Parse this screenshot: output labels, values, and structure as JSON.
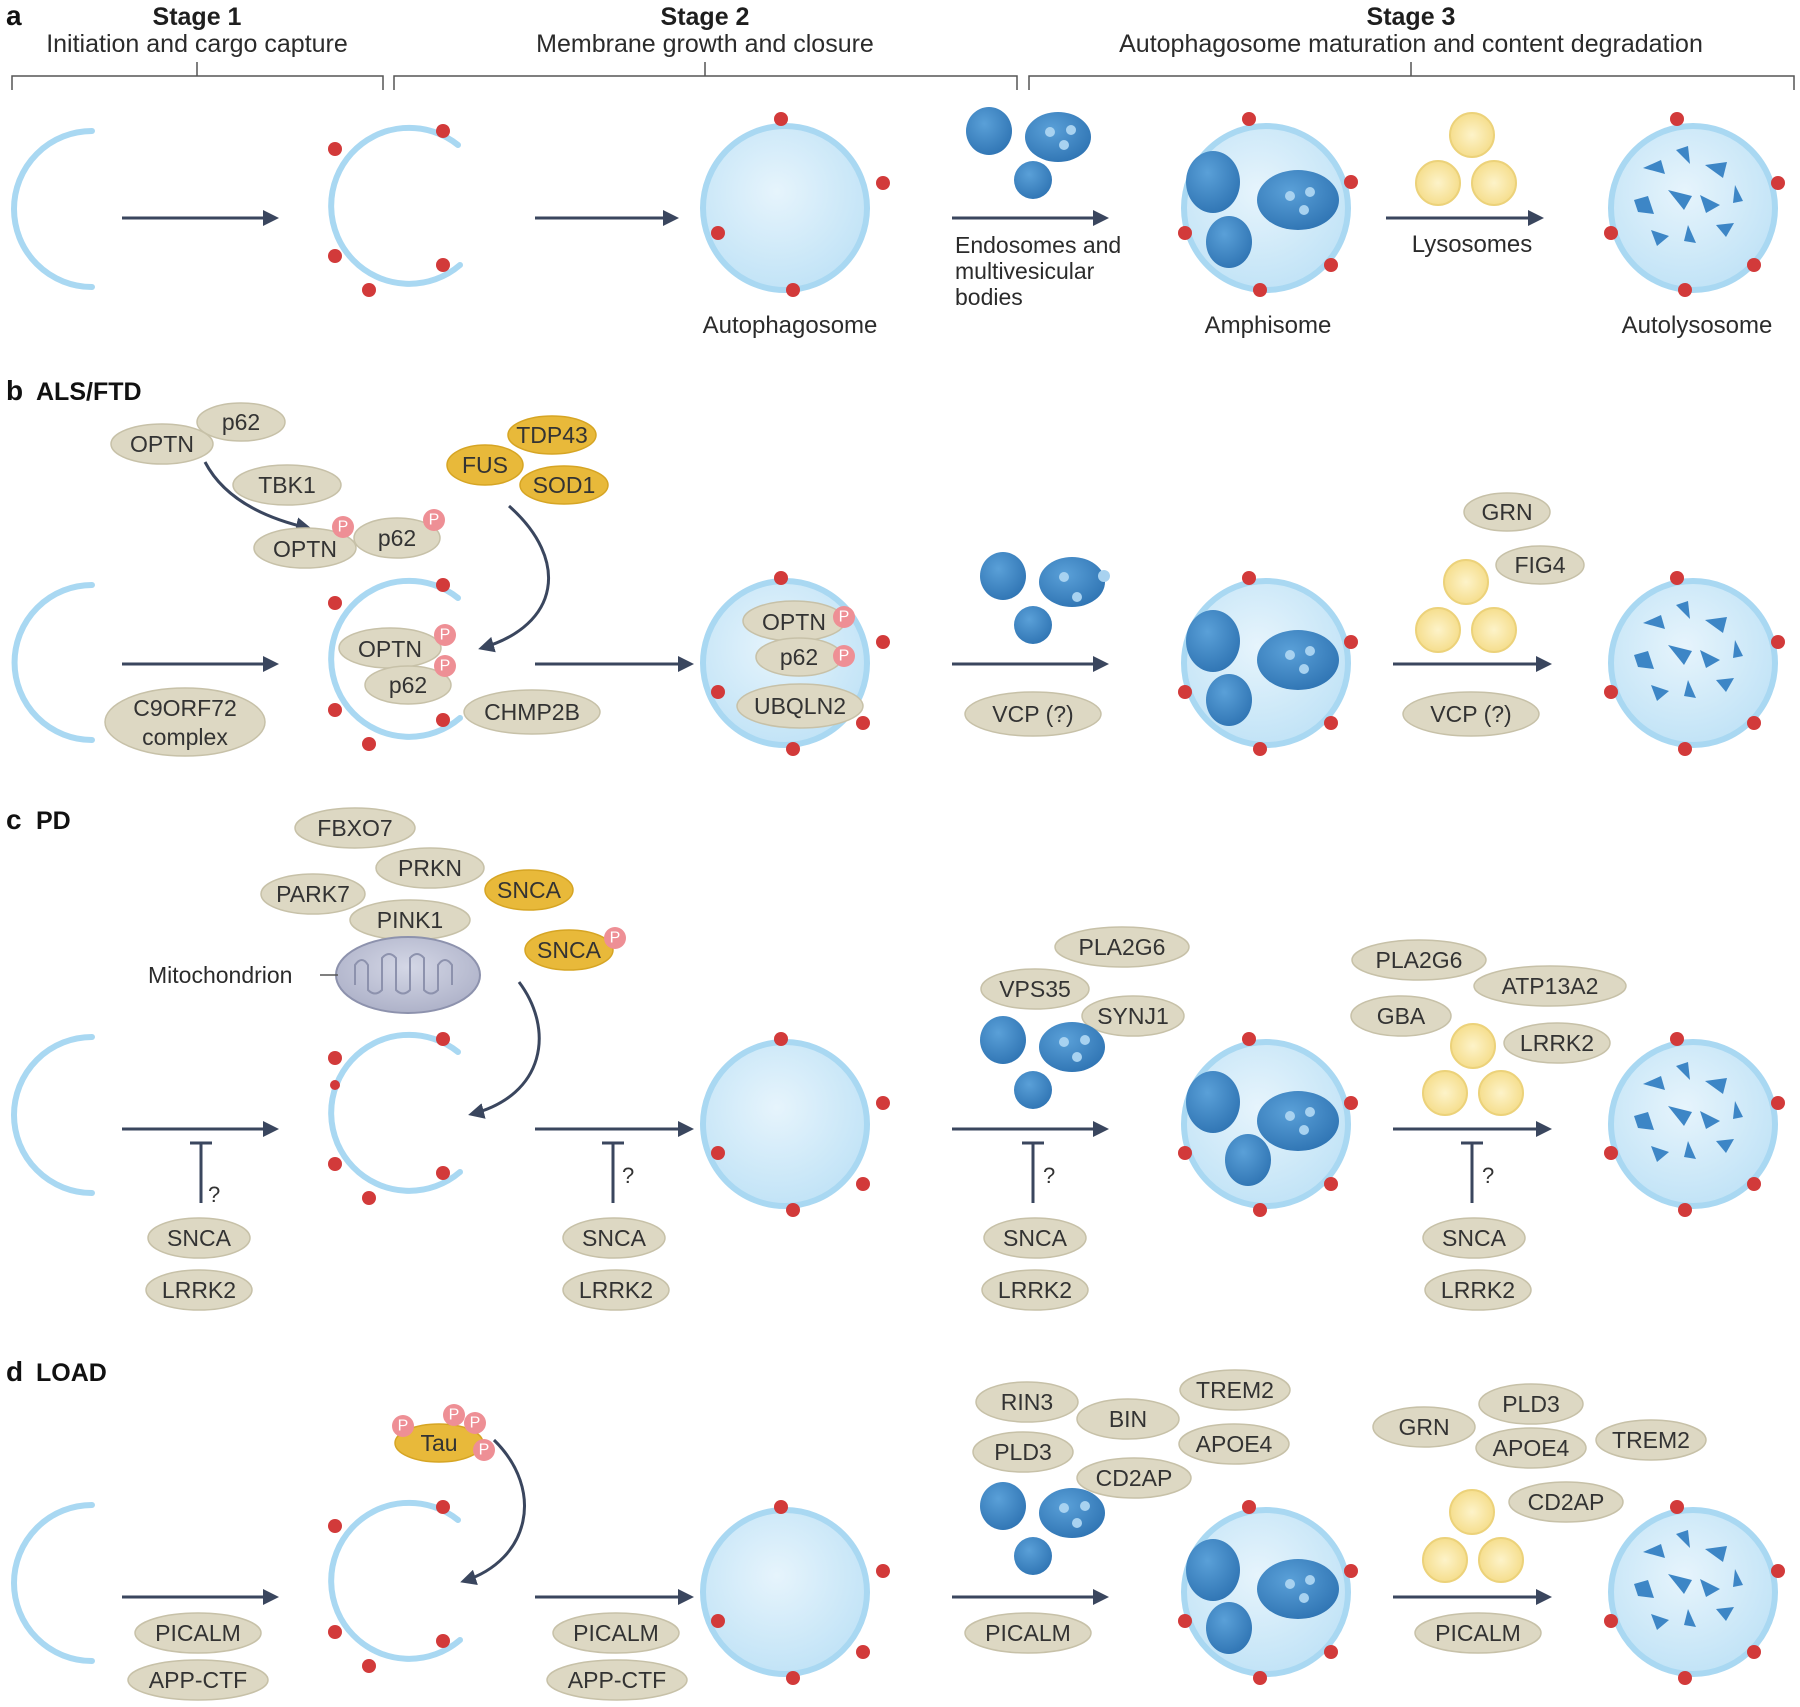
{
  "colors": {
    "membrane": "#a9d8f2",
    "membrane_edge": "#7cc1e8",
    "lumen": "#cfe9f9",
    "red_dot": "#d23a3a",
    "endosome": "#3d86c6",
    "lysosome": "#f7e08a",
    "protein": "#ddd8c3",
    "disease_protein": "#e8b93a",
    "phospho": "#ee8f95",
    "arrow": "#3a465e"
  },
  "stages": [
    {
      "title": "Stage 1",
      "subtitle": "Initiation and cargo capture"
    },
    {
      "title": "Stage 2",
      "subtitle": "Membrane growth and closure"
    },
    {
      "title": "Stage 3",
      "subtitle": "Autophagosome maturation and content degradation"
    }
  ],
  "panel_a": {
    "letter": "a",
    "autophagosome": "Autophagosome",
    "endosomes_label": [
      "Endosomes and",
      "multivesicular",
      "bodies"
    ],
    "amphisome": "Amphisome",
    "lysosomes_label": "Lysosomes",
    "autolysosome": "Autolysosome"
  },
  "panel_b": {
    "letter": "b",
    "name": "ALS/FTD",
    "optn": "OPTN",
    "p62": "p62",
    "tbk1": "TBK1",
    "tdp43": "TDP43",
    "fus": "FUS",
    "sod1": "SOD1",
    "c9orf72": [
      "C9ORF72",
      "complex"
    ],
    "chmp2b": "CHMP2B",
    "ubqln2": "UBQLN2",
    "vcp": "VCP (?)",
    "grn": "GRN",
    "fig4": "FIG4",
    "p": "P"
  },
  "panel_c": {
    "letter": "c",
    "name": "PD",
    "fbxo7": "FBXO7",
    "prkn": "PRKN",
    "park7": "PARK7",
    "pink1": "PINK1",
    "snca": "SNCA",
    "mitochondrion": "Mitochondrion",
    "lrrk2": "LRRK2",
    "pla2g6": "PLA2G6",
    "vps35": "VPS35",
    "synj1": "SYNJ1",
    "atp13a2": "ATP13A2",
    "gba": "GBA",
    "question": "?"
  },
  "panel_d": {
    "letter": "d",
    "name": "LOAD",
    "tau": "Tau",
    "picalm": "PICALM",
    "app_ctf": "APP-CTF",
    "rin3": "RIN3",
    "bin": "BIN",
    "trem2": "TREM2",
    "pld3": "PLD3",
    "apoe4": "APOE4",
    "cd2ap": "CD2AP",
    "grn": "GRN"
  }
}
